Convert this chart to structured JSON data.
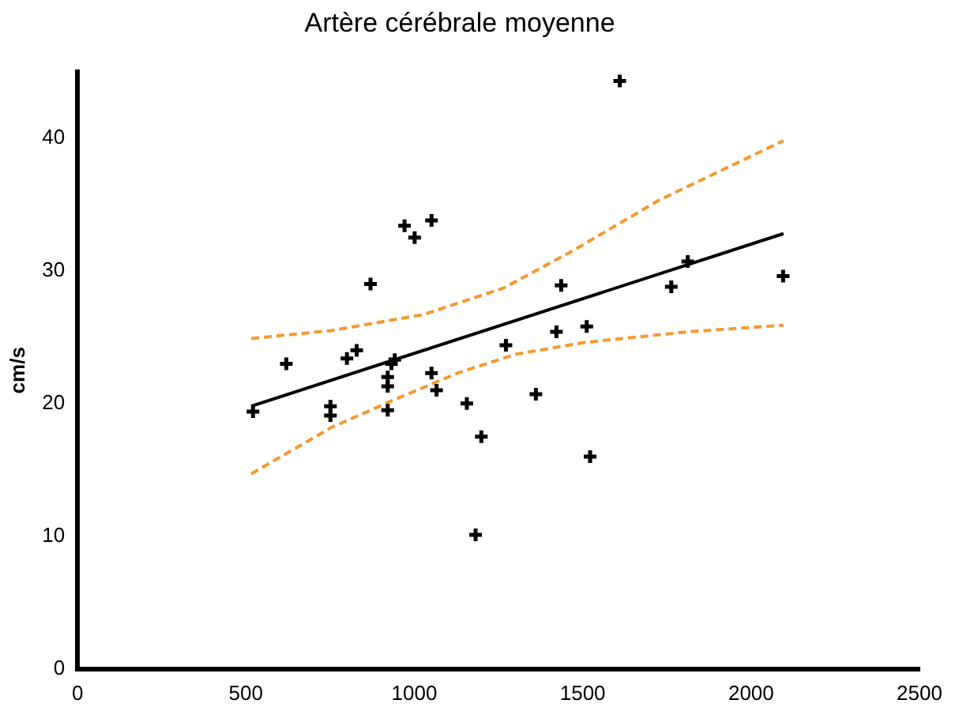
{
  "chart_data": {
    "type": "scatter",
    "title": "Artère cérébrale moyenne",
    "ylabel": "cm/s",
    "xlim": [
      0,
      2500
    ],
    "xticks": [
      0,
      500,
      1000,
      1500,
      2000,
      2500
    ],
    "ylim": [
      0,
      45
    ],
    "yticks": [
      0,
      10,
      20,
      30,
      40
    ],
    "grid": false,
    "legend": false,
    "series": [
      {
        "type": "scatter",
        "color": "#000000",
        "marker": "cross",
        "x": [
          521,
          620,
          751,
          751,
          800,
          829,
          870,
          921,
          921,
          921,
          932,
          942,
          971,
          1001,
          1051,
          1051,
          1066,
          1156,
          1182,
          1199,
          1272,
          1361,
          1422,
          1436,
          1512,
          1522,
          1610,
          1763,
          1812,
          2095
        ],
        "values": [
          19.4,
          23.0,
          19.8,
          19.1,
          23.4,
          24.0,
          29.0,
          22.0,
          21.3,
          19.5,
          23.0,
          23.3,
          33.4,
          32.5,
          33.8,
          22.3,
          21.0,
          20.0,
          10.1,
          17.5,
          24.4,
          20.7,
          25.4,
          28.9,
          25.8,
          16.0,
          44.3,
          28.8,
          30.7,
          29.6
        ]
      },
      {
        "type": "line",
        "color": "#000000",
        "line_style": "solid",
        "marker": "none",
        "x": [
          516,
          2096
        ],
        "values": [
          19.8,
          32.8
        ]
      },
      {
        "type": "line",
        "color": "#f39a32",
        "line_style": "dashed",
        "marker": "none",
        "x": [
          516,
          754,
          942,
          1129,
          1299,
          1504,
          1810,
          2096
        ],
        "values": [
          14.7,
          18.2,
          20.3,
          22.3,
          23.7,
          24.6,
          25.4,
          25.9
        ]
      },
      {
        "type": "line",
        "color": "#f39a32",
        "line_style": "dashed",
        "marker": "none",
        "x": [
          516,
          754,
          1027,
          1265,
          1470,
          1725,
          2096
        ],
        "values": [
          24.9,
          25.5,
          26.7,
          28.7,
          31.5,
          35.3,
          39.8
        ]
      }
    ]
  }
}
